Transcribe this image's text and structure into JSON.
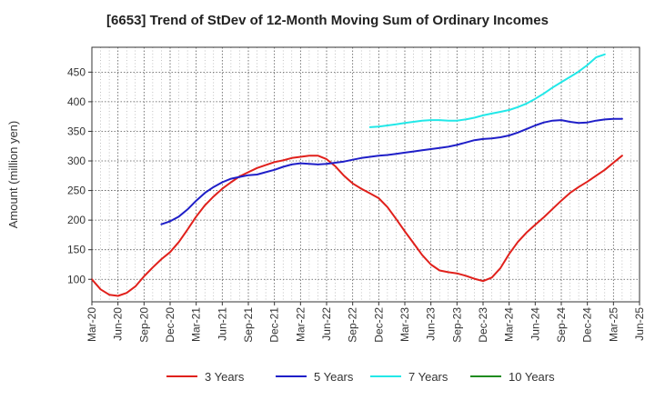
{
  "chart_data": {
    "type": "line",
    "title": "[6653]  Trend of StDev of 12-Month Moving Sum of Ordinary Incomes",
    "ylabel": "Amount (million yen)",
    "xlabel": "",
    "ylim": [
      62,
      492
    ],
    "yticks": [
      100,
      150,
      200,
      250,
      300,
      350,
      400,
      450
    ],
    "ytick_labels": [
      "100",
      "150",
      "200",
      "250",
      "300",
      "350",
      "400",
      "450"
    ],
    "xticks": [
      "Mar-20",
      "Jun-20",
      "Sep-20",
      "Dec-20",
      "Mar-21",
      "Jun-21",
      "Sep-21",
      "Dec-21",
      "Mar-22",
      "Jun-22",
      "Sep-22",
      "Dec-22",
      "Mar-23",
      "Jun-23",
      "Sep-23",
      "Dec-23",
      "Mar-24",
      "Jun-24",
      "Sep-24",
      "Dec-24",
      "Mar-25",
      "Jun-25"
    ],
    "grid": true,
    "legend_position": "bottom",
    "series": [
      {
        "name": "3 Years",
        "color": "#e0201b",
        "start": "Mar-20",
        "values": [
          100,
          83,
          74,
          72,
          77,
          88,
          105,
          120,
          134,
          146,
          163,
          184,
          206,
          225,
          240,
          253,
          264,
          274,
          281,
          288,
          293,
          298,
          301,
          305,
          307,
          309,
          309,
          303,
          291,
          275,
          262,
          253,
          245,
          237,
          222,
          202,
          181,
          161,
          141,
          125,
          115,
          112,
          110,
          106,
          101,
          97,
          103,
          119,
          143,
          163,
          179,
          192,
          205,
          219,
          233,
          246,
          256,
          265,
          275,
          285,
          297,
          309
        ]
      },
      {
        "name": "5 Years",
        "color": "#1f1fc8",
        "start": "Nov-20",
        "values": [
          193,
          198,
          206,
          218,
          233,
          246,
          256,
          264,
          270,
          273,
          276,
          277,
          281,
          285,
          290,
          294,
          296,
          295,
          294,
          295,
          297,
          299,
          302,
          305,
          307,
          309,
          310,
          312,
          314,
          316,
          318,
          320,
          322,
          324,
          327,
          331,
          335,
          337,
          338,
          340,
          343,
          348,
          354,
          360,
          365,
          368,
          369,
          366,
          364,
          365,
          368,
          370,
          371,
          371
        ]
      },
      {
        "name": "7 Years",
        "color": "#22e8e8",
        "start": "Nov-22",
        "values": [
          357,
          358,
          360,
          362,
          364,
          366,
          368,
          369,
          369,
          368,
          368,
          370,
          373,
          377,
          380,
          383,
          386,
          391,
          397,
          405,
          414,
          424,
          433,
          442,
          451,
          462,
          475,
          480
        ]
      },
      {
        "name": "10 Years",
        "color": "#1f8c1f",
        "start": "Mar-25",
        "values": []
      }
    ]
  }
}
